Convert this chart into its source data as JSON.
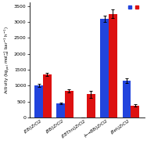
{
  "categories": [
    "(EBi)ZrCl2",
    "(BBi)ZrCl2",
    "(EBThni)ZrCl2",
    "(←→BBi)ZrCl2",
    "(Beh)ZrCl2"
  ],
  "blue_values": [
    1000,
    430,
    0,
    3100,
    1150
  ],
  "red_values": [
    1350,
    830,
    730,
    3250,
    380
  ],
  "blue_errors": [
    50,
    25,
    0,
    100,
    70
  ],
  "red_errors": [
    60,
    45,
    110,
    130,
    30
  ],
  "blue_color": "#2244dd",
  "red_color": "#dd1111",
  "ylabel": "Activity (kg$_{pol}$ mol$_{cat}^{-1}$ bar$^{-1}$ h$^{-1}$)",
  "ylim": [
    0,
    3600
  ],
  "yticks": [
    0,
    500,
    1000,
    1500,
    2000,
    2500,
    3000,
    3500
  ],
  "bar_width": 0.38,
  "background_color": "#ffffff",
  "figwidth": 1.88,
  "figheight": 1.8
}
